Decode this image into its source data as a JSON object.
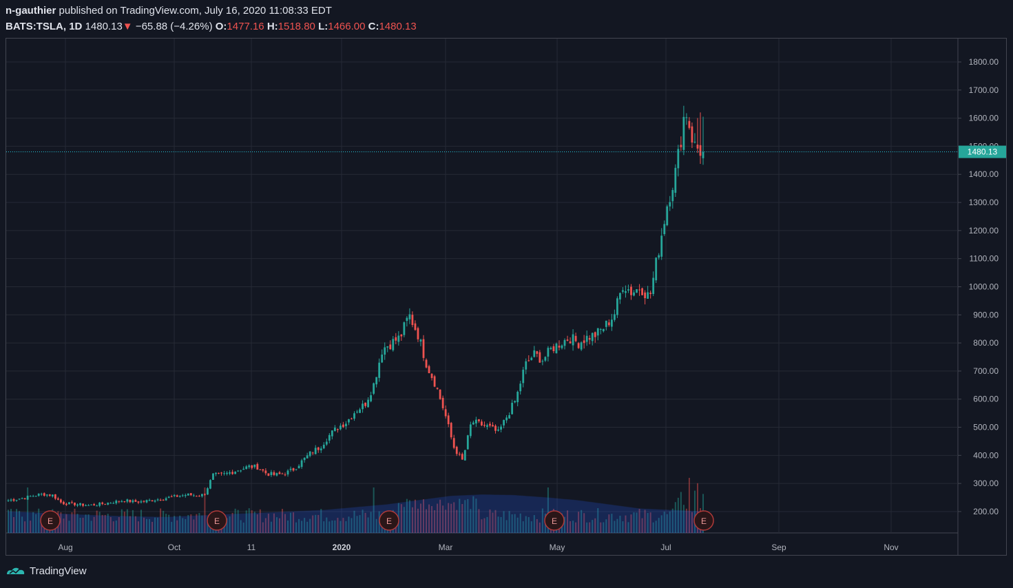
{
  "header": {
    "user": "n-gauthier",
    "published_text": "published on TradingView.com, July 16, 2020 11:08:33 EDT",
    "symbol": "BATS:TSLA, 1D",
    "price": "1480.13",
    "down_arrow": "▼",
    "change": "−65.88 (−4.26%)",
    "open_label": "O:",
    "open": "1477.16",
    "high_label": "H:",
    "high": "1518.80",
    "low_label": "L:",
    "low": "1466.00",
    "close_label": "C:",
    "close": "1480.13"
  },
  "brand": {
    "name": "TradingView",
    "logo_icon": "tradingview-logo-icon"
  },
  "colors": {
    "background": "#131722",
    "up": "#26a69a",
    "down": "#ef5350",
    "grid": "#262a35",
    "axis_text": "#b2b5be",
    "price_line": "#26c6da",
    "volume_ma": "#2962ff"
  },
  "chart_data": {
    "type": "candlestick",
    "symbol": "BATS:TSLA",
    "interval": "1D",
    "current_price": 1480.13,
    "current_price_label": "1480.13",
    "y_ticks": [
      "1800.00",
      "1700.00",
      "1600.00",
      "1500.00",
      "1400.00",
      "1300.00",
      "1200.00",
      "1100.00",
      "1000.00",
      "900.00",
      "800.00",
      "700.00",
      "600.00",
      "500.00",
      "400.00",
      "300.00",
      "200.00"
    ],
    "x_ticks": [
      "Aug",
      "Oct",
      "11",
      "2020",
      "Mar",
      "May",
      "Jul",
      "Sep",
      "Nov"
    ],
    "earnings_marker_label": "E",
    "earnings_dates": [
      "2019-07-24",
      "2019-10-23",
      "2020-01-29",
      "2020-04-29",
      "2020-07-22"
    ],
    "grid": true,
    "start_date": "2019-07-15",
    "closes_weekly": [
      [
        240,
        245,
        250,
        258,
        262,
        258
      ],
      [
        230,
        228,
        225,
        222,
        225,
        230,
        235,
        240,
        235
      ],
      [
        235,
        240,
        245,
        250,
        255,
        260,
        258,
        260,
        330,
        330
      ],
      [
        340,
        350,
        360,
        358,
        335,
        330,
        335,
        350,
        380,
        410
      ],
      [
        430,
        470,
        500,
        520,
        560,
        580,
        650,
        780,
        800,
        820
      ],
      [
        900,
        830,
        720,
        650,
        550,
        430,
        380,
        520,
        510,
        500
      ],
      [
        480,
        540,
        600,
        720,
        760,
        740,
        780,
        800,
        820,
        800
      ],
      [
        820,
        830,
        860,
        900,
        1010,
        980,
        1000,
        960,
        1130,
        1300
      ],
      [
        1420,
        1640,
        1500,
        1480
      ]
    ],
    "volume_note": "daily volume histogram with moving average, lower band",
    "volume_ma_weekly": [
      200,
      195,
      190,
      185,
      182,
      180,
      185,
      190,
      195,
      200,
      205,
      215,
      225,
      240,
      255,
      260,
      258,
      250,
      240,
      225,
      210,
      205,
      200
    ]
  }
}
